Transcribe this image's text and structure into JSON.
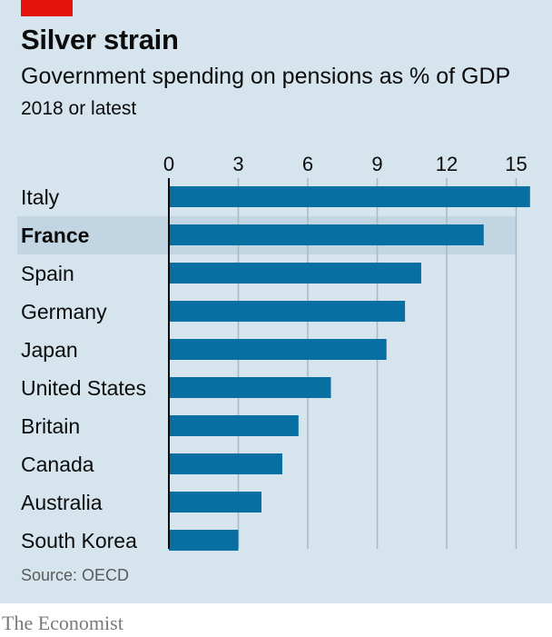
{
  "header": {
    "title": "Silver strain",
    "subtitle": "Government spending on pensions as % of GDP",
    "subtitle2": "2018 or latest"
  },
  "footer": {
    "source": "Source: OECD",
    "brand": "The Economist"
  },
  "colors": {
    "bar": "#076fa1",
    "highlight": "#c1d6e2",
    "grid": "#a8b9c2",
    "axis": "#0c0c0c",
    "brand_red": "#e3120b"
  },
  "chart_data": {
    "type": "bar",
    "orientation": "horizontal",
    "categories": [
      "Italy",
      "France",
      "Spain",
      "Germany",
      "Japan",
      "United States",
      "Britain",
      "Canada",
      "Australia",
      "South Korea"
    ],
    "values": [
      15.6,
      13.6,
      10.9,
      10.2,
      9.4,
      7.0,
      5.6,
      4.9,
      4.0,
      3.0
    ],
    "highlighted": "France",
    "xticks": [
      0,
      3,
      6,
      9,
      12,
      15
    ],
    "xlim": [
      0,
      15.6
    ],
    "grid": true,
    "tick_position": "top"
  }
}
